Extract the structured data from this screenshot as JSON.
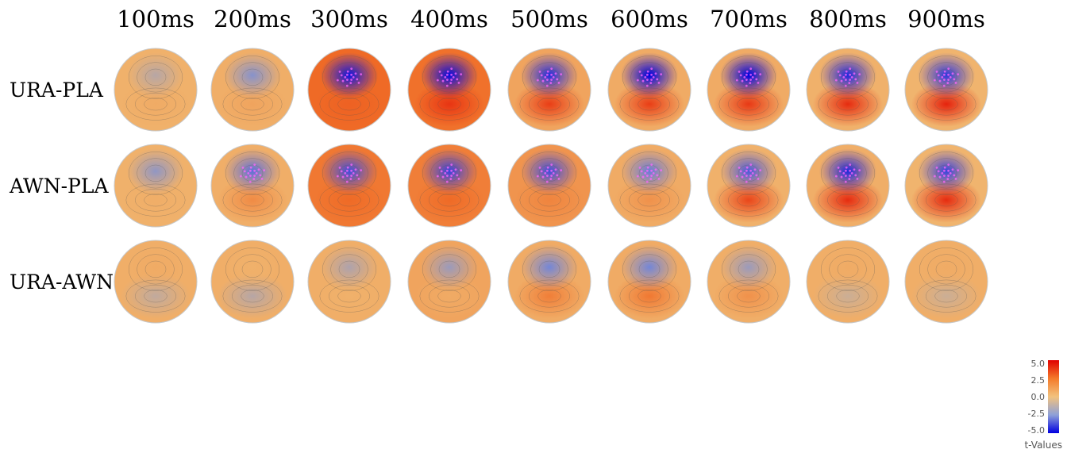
{
  "time_labels": [
    "100ms",
    "200ms",
    "300ms",
    "400ms",
    "500ms",
    "600ms",
    "700ms",
    "800ms",
    "900ms"
  ],
  "row_labels": [
    "URA-PLA",
    "AWN-PLA",
    "URA-AWN"
  ],
  "colorbar": {
    "ticks": [
      "5.0",
      "2.5",
      "0.0",
      "-2.5",
      "-5.0"
    ],
    "title": "t-Values",
    "colors": [
      "#e00000",
      "#f47a2a",
      "#f2c27e",
      "#8ea0d8",
      "#0000e0"
    ]
  },
  "maps": [
    [
      {
        "front": -1.2,
        "back": 0.6,
        "base": 0.4,
        "sig": 0
      },
      {
        "front": -2.2,
        "back": 0.8,
        "base": 0.5,
        "sig": 0
      },
      {
        "front": -4.6,
        "back": 2.8,
        "base": 2.6,
        "sig": 1
      },
      {
        "front": -4.8,
        "back": 3.8,
        "base": 2.4,
        "sig": 1
      },
      {
        "front": -4.2,
        "back": 3.6,
        "base": 0.8,
        "sig": 1
      },
      {
        "front": -5.0,
        "back": 3.6,
        "base": 0.6,
        "sig": 1
      },
      {
        "front": -5.0,
        "back": 3.7,
        "base": 0.6,
        "sig": 1
      },
      {
        "front": -4.3,
        "back": 4.0,
        "base": 0.4,
        "sig": 1
      },
      {
        "front": -4.0,
        "back": 4.2,
        "base": 0.3,
        "sig": 1
      }
    ],
    [
      {
        "front": -2.0,
        "back": 0.5,
        "base": 0.4,
        "sig": 0
      },
      {
        "front": -3.0,
        "back": 1.6,
        "base": 0.5,
        "sig": 1
      },
      {
        "front": -3.6,
        "back": 2.6,
        "base": 2.2,
        "sig": 1
      },
      {
        "front": -3.8,
        "back": 2.6,
        "base": 2.0,
        "sig": 1
      },
      {
        "front": -3.6,
        "back": 1.8,
        "base": 1.3,
        "sig": 1
      },
      {
        "front": -2.8,
        "back": 1.4,
        "base": 0.6,
        "sig": 1
      },
      {
        "front": -3.4,
        "back": 3.4,
        "base": 0.4,
        "sig": 1
      },
      {
        "front": -4.3,
        "back": 4.0,
        "base": 0.5,
        "sig": 1
      },
      {
        "front": -3.8,
        "back": 4.0,
        "base": 0.3,
        "sig": 1
      }
    ],
    [
      {
        "front": 0.6,
        "back": -1.0,
        "base": 0.5,
        "sig": 0
      },
      {
        "front": 0.4,
        "back": -1.2,
        "base": 0.5,
        "sig": 0
      },
      {
        "front": -1.4,
        "back": 0.4,
        "base": 0.5,
        "sig": 0
      },
      {
        "front": -1.8,
        "back": 0.6,
        "base": 0.8,
        "sig": 0
      },
      {
        "front": -2.6,
        "back": 2.0,
        "base": 0.6,
        "sig": 0
      },
      {
        "front": -2.6,
        "back": 2.2,
        "base": 0.6,
        "sig": 0
      },
      {
        "front": -1.8,
        "back": 1.4,
        "base": 0.5,
        "sig": 0
      },
      {
        "front": 0.6,
        "back": -0.8,
        "base": 0.5,
        "sig": 0
      },
      {
        "front": 0.6,
        "back": -0.8,
        "base": 0.5,
        "sig": 0
      }
    ]
  ]
}
